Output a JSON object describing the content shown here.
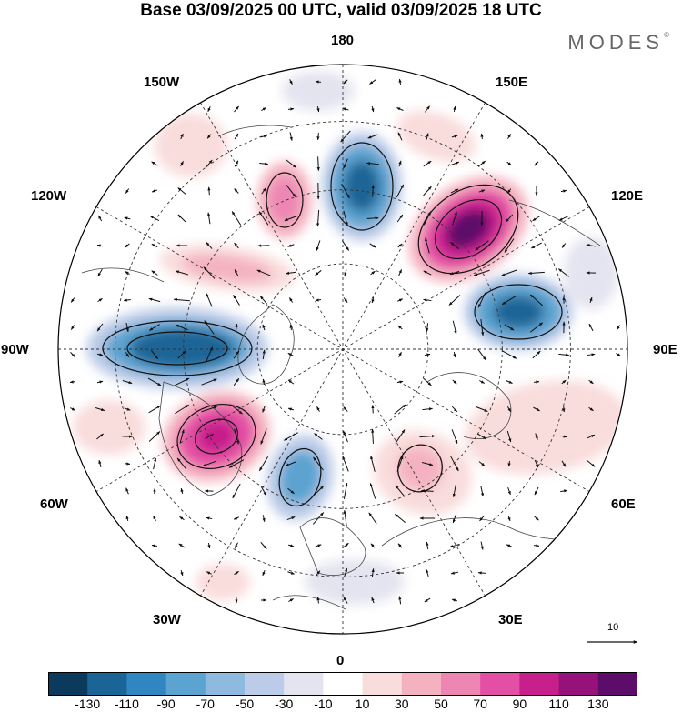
{
  "title": "Base 03/09/2025 00 UTC, valid 03/09/2025 18 UTC",
  "brand": "MODES",
  "brand_mark": "©",
  "longitude_labels": {
    "lon_180": "180",
    "lon_150e": "150E",
    "lon_120e": "120E",
    "lon_90e": "90E",
    "lon_60e": "60E",
    "lon_30e": "30E",
    "lon_0": "0",
    "lon_30w": "30W",
    "lon_60w": "60W",
    "lon_90w": "90W",
    "lon_120w": "120W",
    "lon_150w": "150W"
  },
  "colorbar": {
    "colors": [
      "#0b3a5c",
      "#1a6596",
      "#2f86c0",
      "#5ba3d0",
      "#8fbadf",
      "#bccbe7",
      "#e4e4f0",
      "#ffffff",
      "#f9dcdc",
      "#f4b2c0",
      "#ee86b4",
      "#e34fa4",
      "#c71f8c",
      "#96127a",
      "#5c0d6a"
    ],
    "ticks": [
      "-130",
      "-110",
      "-90",
      "-70",
      "-50",
      "-30",
      "-10",
      "10",
      "30",
      "50",
      "70",
      "90",
      "110",
      "130"
    ]
  },
  "reference_vector": "10",
  "chart_data": {
    "type": "polar_map",
    "projection": "north polar stereographic",
    "field": "shaded anomaly with wind vectors",
    "legend": "colorbar bottom",
    "centers": [
      {
        "sign": "positive",
        "max_class": "130",
        "lon": 131
      },
      {
        "sign": "negative",
        "max_class": "-90",
        "lon": 100
      },
      {
        "sign": "negative",
        "max_class": "-90",
        "lon": 172
      },
      {
        "sign": "positive",
        "max_class": "70",
        "lon": -150
      },
      {
        "sign": "positive",
        "max_class": "50",
        "lon": -120
      },
      {
        "sign": "negative",
        "max_class": "-110",
        "lon": -91
      },
      {
        "sign": "positive",
        "max_class": "110",
        "lon": -55
      },
      {
        "sign": "negative",
        "max_class": "-70",
        "lon": -10
      },
      {
        "sign": "positive",
        "max_class": "50",
        "lon": 30
      }
    ]
  }
}
